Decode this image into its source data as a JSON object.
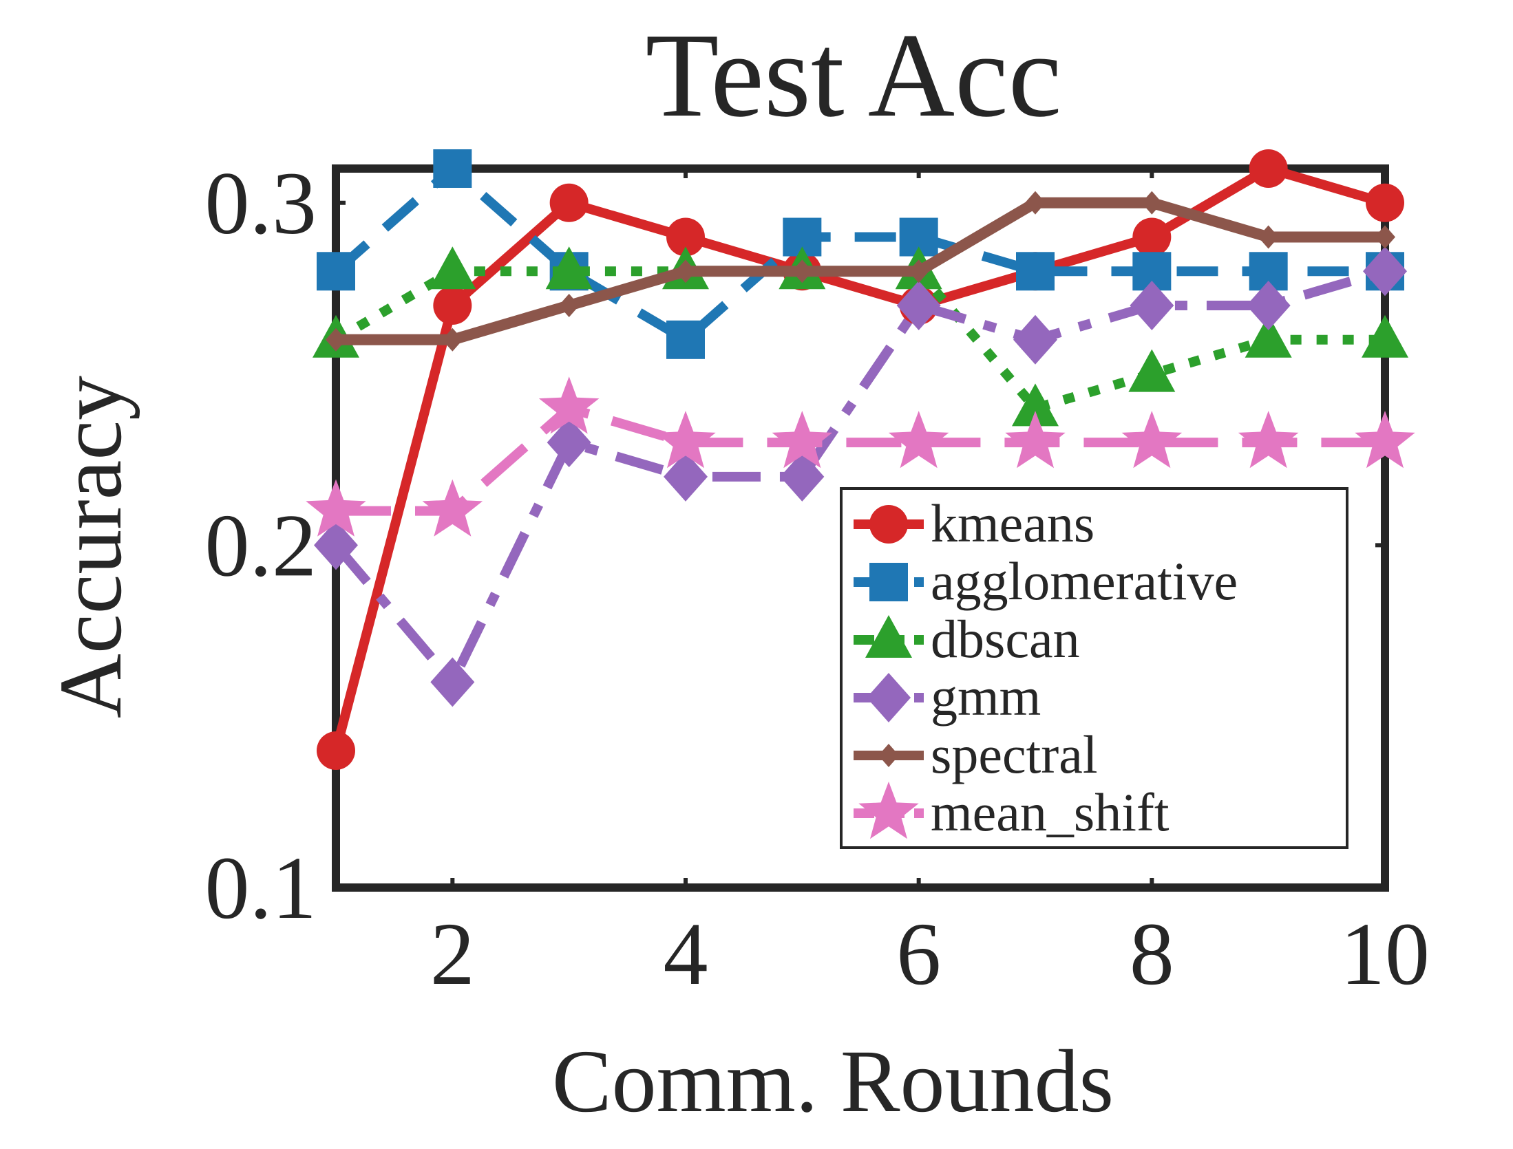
{
  "chart_data": {
    "type": "line",
    "title": "Test Acc",
    "xlabel": "Comm. Rounds",
    "ylabel": "Accuracy",
    "xlim": [
      1,
      10
    ],
    "ylim": [
      0.1,
      0.31
    ],
    "xticks": [
      2,
      4,
      6,
      8,
      10
    ],
    "xtick_labels": [
      "2",
      "4",
      "6",
      "8",
      "10"
    ],
    "yticks": [
      0.1,
      0.2,
      0.3
    ],
    "ytick_labels": [
      "0.1",
      "0.2",
      "0.3"
    ],
    "legend_position": "lower-right",
    "x": [
      1,
      2,
      3,
      4,
      5,
      6,
      7,
      8,
      9,
      10
    ],
    "series": [
      {
        "name": "kmeans",
        "color": "#d62728",
        "marker": "circle",
        "dash": "solid",
        "values": [
          0.14,
          0.27,
          0.3,
          0.29,
          0.28,
          0.27,
          0.28,
          0.29,
          0.31,
          0.3
        ]
      },
      {
        "name": "agglomerative",
        "color": "#1f77b4",
        "marker": "square",
        "dash": "dash",
        "values": [
          0.28,
          0.31,
          0.28,
          0.26,
          0.29,
          0.29,
          0.28,
          0.28,
          0.28,
          0.28
        ]
      },
      {
        "name": "dbscan",
        "color": "#2ca02c",
        "marker": "triangle",
        "dash": "dot",
        "values": [
          0.26,
          0.28,
          0.28,
          0.28,
          0.28,
          0.28,
          0.24,
          0.25,
          0.26,
          0.26
        ]
      },
      {
        "name": "gmm",
        "color": "#9467bd",
        "marker": "diamond",
        "dash": "dashdot",
        "values": [
          0.2,
          0.16,
          0.23,
          0.22,
          0.22,
          0.27,
          0.26,
          0.27,
          0.27,
          0.28
        ]
      },
      {
        "name": "spectral",
        "color": "#8c564b",
        "marker": "smalldiamond",
        "dash": "solid",
        "values": [
          0.26,
          0.26,
          0.27,
          0.28,
          0.28,
          0.28,
          0.3,
          0.3,
          0.29,
          0.29
        ]
      },
      {
        "name": "mean_shift",
        "color": "#e377c2",
        "marker": "star",
        "dash": "longdash",
        "values": [
          0.21,
          0.21,
          0.24,
          0.23,
          0.23,
          0.23,
          0.23,
          0.23,
          0.23,
          0.23
        ]
      }
    ]
  }
}
